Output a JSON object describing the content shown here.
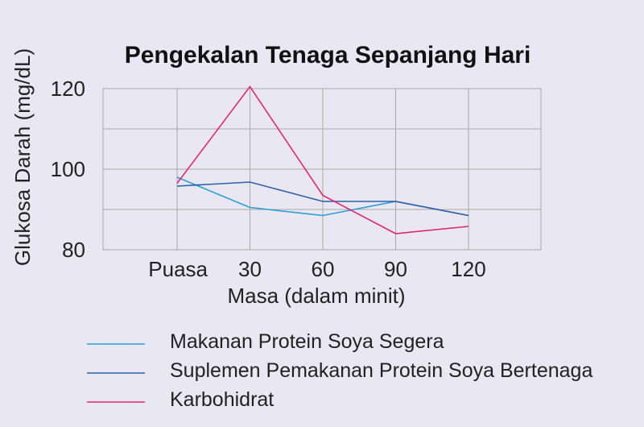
{
  "chart_data": {
    "type": "line",
    "title": "Pengekalan Tenaga Sepanjang Hari",
    "xlabel": "Masa (dalam minit)",
    "ylabel": "Glukosa Darah (mg/dL)",
    "categories": [
      "Puasa",
      "30",
      "60",
      "90",
      "120"
    ],
    "yticks": [
      80,
      100,
      120
    ],
    "ylim": [
      80,
      120
    ],
    "grid": true,
    "legend_position": "bottom",
    "series": [
      {
        "name": "Makanan Protein Soya Segera",
        "color": "#2a9fd6",
        "values": [
          98,
          90.5,
          88.5,
          92,
          88.5
        ]
      },
      {
        "name": "Suplemen Pemakanan Protein Soya Bertenaga",
        "color": "#2f5fa7",
        "values": [
          95.8,
          96.8,
          92,
          92,
          88.5
        ]
      },
      {
        "name": "Karbohidrat",
        "color": "#e0296e",
        "values": [
          96.5,
          120.5,
          93.5,
          84,
          85.8
        ]
      }
    ]
  }
}
